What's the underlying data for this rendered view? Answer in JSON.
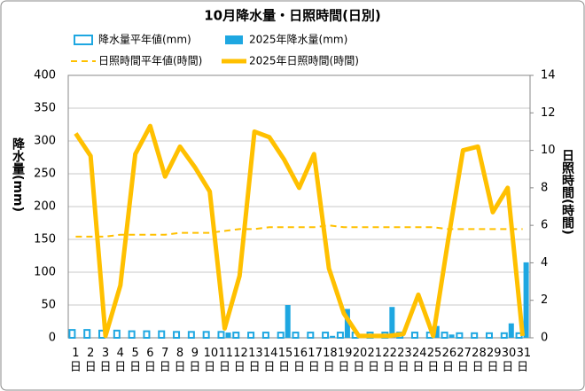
{
  "chart_data": {
    "type": "combo",
    "title": "10月降水量・日照時間(日別)",
    "y_label": "降水量(mm)",
    "y2_label": "日照時間(時間)",
    "categories": [
      "1日",
      "2日",
      "3日",
      "4日",
      "5日",
      "6日",
      "7日",
      "8日",
      "9日",
      "10日",
      "11日",
      "12日",
      "13日",
      "14日",
      "15日",
      "16日",
      "17日",
      "18日",
      "19日",
      "20日",
      "21日",
      "22日",
      "23日",
      "24日",
      "25日",
      "26日",
      "27日",
      "28日",
      "29日",
      "30日",
      "31日"
    ],
    "ylim": [
      0,
      400
    ],
    "yticks": [
      0,
      50,
      100,
      150,
      200,
      250,
      300,
      350,
      400
    ],
    "y2lim": [
      0,
      14
    ],
    "y2ticks": [
      0,
      2,
      4,
      6,
      8,
      10,
      12,
      14
    ],
    "grid": true,
    "series": [
      {
        "name": "降水量平年値(mm)",
        "type": "bar",
        "style": "outline",
        "color": "#1ea7e1",
        "values": [
          12,
          12,
          11,
          11,
          10,
          10,
          10,
          9,
          9,
          9,
          9,
          8,
          8,
          8,
          8,
          8,
          8,
          8,
          8,
          8,
          8,
          8,
          8,
          8,
          8,
          8,
          7,
          7,
          7,
          7,
          7
        ]
      },
      {
        "name": "2025年降水量(mm)",
        "type": "bar",
        "style": "filled",
        "color": "#1ea7e1",
        "values": [
          0,
          0,
          0,
          0,
          0,
          0,
          0,
          0,
          0,
          0,
          8,
          0,
          0,
          0,
          50,
          0,
          0,
          3,
          44,
          0,
          0,
          47,
          0,
          0,
          18,
          5,
          0,
          0,
          0,
          22,
          115
        ]
      },
      {
        "name": "日照時間平年値(時間)",
        "type": "line",
        "style": "dashed",
        "axis": "y2",
        "color": "#ffc000",
        "values": [
          5.4,
          5.4,
          5.4,
          5.5,
          5.5,
          5.5,
          5.5,
          5.6,
          5.6,
          5.6,
          5.7,
          5.8,
          5.8,
          5.9,
          5.9,
          5.9,
          5.9,
          6.0,
          5.9,
          5.9,
          5.9,
          5.9,
          5.9,
          5.9,
          5.9,
          5.8,
          5.8,
          5.8,
          5.8,
          5.8,
          5.8
        ]
      },
      {
        "name": "2025年日照時間(時間)",
        "type": "line",
        "style": "solid",
        "axis": "y2",
        "color": "#ffc000",
        "values": [
          10.9,
          9.7,
          0.1,
          2.8,
          9.8,
          11.3,
          8.6,
          10.2,
          9.1,
          7.8,
          0.5,
          3.3,
          11.0,
          10.7,
          9.5,
          8.0,
          9.8,
          3.7,
          1.3,
          0.1,
          0.1,
          0.1,
          0.2,
          2.3,
          0.1,
          5.2,
          10.0,
          10.2,
          6.7,
          8.0,
          0.1
        ]
      }
    ]
  }
}
